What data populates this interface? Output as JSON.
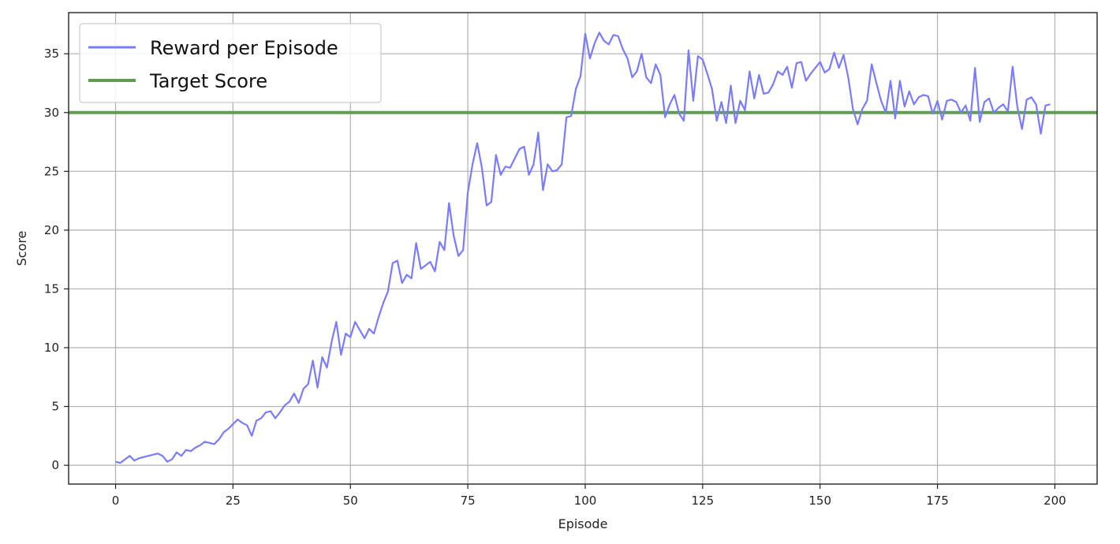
{
  "chart_data": {
    "type": "line",
    "title": "",
    "xlabel": "Episode",
    "ylabel": "Score",
    "xlim": [
      -10,
      209
    ],
    "ylim": [
      -1.6,
      38.5
    ],
    "grid": true,
    "legend_position": "upper-left",
    "x_ticks": [
      0,
      25,
      50,
      75,
      100,
      125,
      150,
      175,
      200
    ],
    "y_ticks": [
      0,
      5,
      10,
      15,
      20,
      25,
      30,
      35
    ],
    "series": [
      {
        "name": "Reward per Episode",
        "color": "#7b7bff",
        "x_start": 0,
        "x_step": 1,
        "values": [
          0.3,
          0.2,
          0.5,
          0.8,
          0.4,
          0.6,
          0.7,
          0.8,
          0.9,
          1.0,
          0.8,
          0.3,
          0.5,
          1.1,
          0.8,
          1.3,
          1.2,
          1.5,
          1.7,
          2.0,
          1.9,
          1.8,
          2.2,
          2.8,
          3.1,
          3.5,
          3.9,
          3.6,
          3.4,
          2.5,
          3.8,
          4.0,
          4.5,
          4.6,
          4.0,
          4.5,
          5.1,
          5.4,
          6.1,
          5.3,
          6.5,
          6.9,
          8.9,
          6.6,
          9.2,
          8.3,
          10.5,
          12.2,
          9.4,
          11.2,
          10.9,
          12.2,
          11.5,
          10.8,
          11.6,
          11.2,
          12.6,
          13.8,
          14.8,
          17.2,
          17.4,
          15.5,
          16.2,
          15.9,
          18.9,
          16.7,
          17.0,
          17.3,
          16.5,
          19.0,
          18.3,
          22.3,
          19.5,
          17.8,
          18.3,
          23.2,
          25.6,
          27.4,
          25.3,
          22.1,
          22.4,
          26.4,
          24.7,
          25.4,
          25.3,
          26.1,
          26.9,
          27.1,
          24.7,
          25.6,
          28.3,
          23.4,
          25.6,
          25.0,
          25.1,
          25.6,
          29.6,
          29.7,
          32.0,
          33.1,
          36.7,
          34.6,
          35.9,
          36.8,
          36.1,
          35.8,
          36.6,
          36.5,
          35.4,
          34.6,
          33.0,
          33.5,
          35.0,
          33.0,
          32.5,
          34.1,
          33.2,
          29.6,
          30.7,
          31.5,
          29.9,
          29.3,
          35.3,
          31.0,
          34.8,
          34.5,
          33.3,
          32.0,
          29.3,
          30.9,
          29.1,
          32.3,
          29.1,
          31.0,
          30.2,
          33.5,
          31.2,
          33.2,
          31.6,
          31.7,
          32.4,
          33.5,
          33.2,
          33.9,
          32.1,
          34.2,
          34.3,
          32.7,
          33.3,
          33.8,
          34.3,
          33.4,
          33.7,
          35.1,
          33.8,
          34.9,
          33.0,
          30.3,
          29.0,
          30.3,
          31.0,
          34.1,
          32.5,
          31.0,
          30.0,
          32.7,
          29.5,
          32.7,
          30.5,
          31.8,
          30.7,
          31.3,
          31.5,
          31.4,
          29.9,
          31.0,
          29.4,
          31.0,
          31.1,
          30.9,
          30.0,
          30.6,
          29.3,
          33.8,
          29.2,
          30.9,
          31.2,
          30.0,
          30.4,
          30.7,
          30.1,
          33.9,
          30.5,
          28.6,
          31.1,
          31.3,
          30.7,
          28.2,
          30.6,
          30.7
        ]
      },
      {
        "name": "Target Score",
        "color": "#5f9e4f",
        "constant": 30
      }
    ]
  }
}
